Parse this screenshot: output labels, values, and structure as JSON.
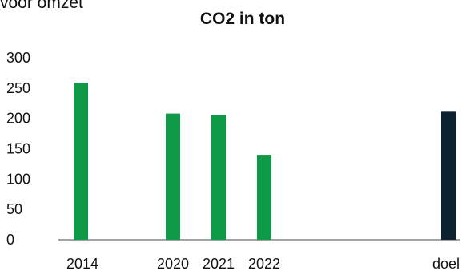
{
  "header_fragment": "voor omzet",
  "chart_data": {
    "type": "bar",
    "title": "CO2 in ton",
    "xlabel": "",
    "ylabel": "",
    "categories": [
      "2014",
      "2020",
      "2021",
      "2022",
      "doel"
    ],
    "values": [
      259,
      208,
      205,
      140,
      211
    ],
    "ylim": [
      0,
      300
    ],
    "yticks": [
      0,
      50,
      100,
      150,
      200,
      250,
      300
    ],
    "grid": false,
    "legend": "none",
    "colors": {
      "bar": "#0f9a48",
      "target_bar": "#0b2233",
      "axis": "#444444"
    }
  }
}
